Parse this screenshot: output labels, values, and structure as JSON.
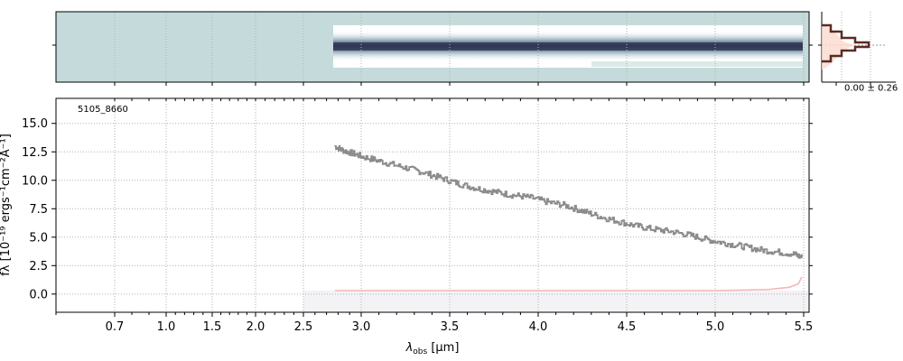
{
  "chart_data": {
    "type": "line",
    "object_id": "5105_8660",
    "xlabel": "λobs [μm]",
    "xlabel_main": "λ",
    "xlabel_sub": "obs",
    "xlabel_unit": " [μm]",
    "ylabel": "fλ [10⁻¹⁹ ergs⁻¹cm⁻²Å⁻¹]",
    "ylim": [
      -1.6,
      17.2
    ],
    "yticks": [
      "0.0",
      "2.5",
      "5.0",
      "7.5",
      "10.0",
      "12.5",
      "15.0"
    ],
    "ytick_values": [
      0,
      2.5,
      5,
      7.5,
      10,
      12.5,
      15
    ],
    "xticks": [
      "0.7",
      "1.0",
      "1.5",
      "2.0",
      "2.5",
      "3.0",
      "3.5",
      "4.0",
      "4.5",
      "5.0",
      "5.5"
    ],
    "xtick_values": [
      0.7,
      1.0,
      1.5,
      2.0,
      2.5,
      3.0,
      3.5,
      4.0,
      4.5,
      5.0,
      5.5
    ],
    "xlim": [
      0.6,
      5.53
    ],
    "grid": true,
    "series": [
      {
        "role": "flux",
        "color": "#8c8c8c",
        "x": [
          2.77,
          2.85,
          2.95,
          3.05,
          3.15,
          3.25,
          3.35,
          3.45,
          3.55,
          3.65,
          3.75,
          3.85,
          3.95,
          4.05,
          4.15,
          4.25,
          4.35,
          4.45,
          4.55,
          4.65,
          4.75,
          4.85,
          4.95,
          5.05,
          5.15,
          5.25,
          5.35,
          5.45,
          5.49
        ],
        "values": [
          13.0,
          12.6,
          12.3,
          11.9,
          11.5,
          11.1,
          10.7,
          10.2,
          9.7,
          9.3,
          9.0,
          8.7,
          8.5,
          8.1,
          7.8,
          7.3,
          6.8,
          6.4,
          6.0,
          5.7,
          5.5,
          5.2,
          4.8,
          4.5,
          4.2,
          3.9,
          3.7,
          3.5,
          3.2
        ]
      },
      {
        "role": "error",
        "color": "#f4b8b4",
        "x": [
          2.77,
          3.0,
          3.5,
          4.0,
          4.5,
          5.0,
          5.3,
          5.42,
          5.47,
          5.49
        ],
        "values": [
          0.3,
          0.3,
          0.3,
          0.3,
          0.3,
          0.3,
          0.4,
          0.6,
          0.9,
          1.5
        ]
      }
    ],
    "histogram_label": "0.00 ± 0.26",
    "colors": {
      "spectrum_background": "#c5dbdb",
      "trace_dark": "#353d5a",
      "flux_line": "#8c8c8c",
      "error_line": "#f4b8b4",
      "histogram_line": "#5b2a22",
      "histogram_fill": "#fbd9cf",
      "grid": "#b0b0b0"
    }
  }
}
